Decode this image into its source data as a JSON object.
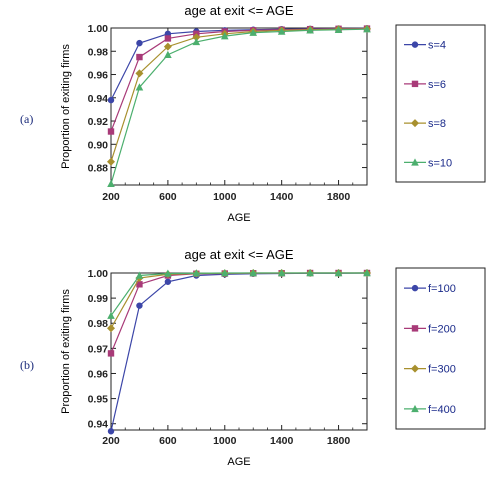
{
  "chart_data": [
    {
      "type": "line",
      "panel_label": "(a)",
      "title": "age at exit <= AGE",
      "xlabel": "AGE",
      "ylabel": "Proportion of exiting firms",
      "x": [
        200,
        400,
        600,
        800,
        1000,
        1200,
        1400,
        1600,
        1800,
        2000
      ],
      "xlim": [
        200,
        2000
      ],
      "ylim": [
        0.865,
        1.0
      ],
      "xticks": [
        "200",
        "600",
        "1000",
        "1400",
        "1800"
      ],
      "yticks": [
        "0.88",
        "0.90",
        "0.92",
        "0.94",
        "0.96",
        "0.98",
        "1.00"
      ],
      "grid": false,
      "legend_position": "right",
      "series": [
        {
          "name": "s=4",
          "color": "#3c46a8",
          "marker": "circle",
          "values": [
            0.938,
            0.987,
            0.995,
            0.997,
            0.998,
            0.9985,
            0.999,
            0.9993,
            0.9995,
            0.9997
          ]
        },
        {
          "name": "s=6",
          "color": "#a83a78",
          "marker": "square",
          "values": [
            0.911,
            0.975,
            0.991,
            0.995,
            0.997,
            0.998,
            0.9985,
            0.999,
            0.9993,
            0.9995
          ]
        },
        {
          "name": "s=8",
          "color": "#a8902e",
          "marker": "diamond",
          "values": [
            0.885,
            0.961,
            0.984,
            0.992,
            0.995,
            0.997,
            0.998,
            0.9985,
            0.999,
            0.9992
          ]
        },
        {
          "name": "s=10",
          "color": "#4caf6e",
          "marker": "triangle",
          "values": [
            0.866,
            0.949,
            0.977,
            0.988,
            0.993,
            0.996,
            0.997,
            0.998,
            0.9985,
            0.999
          ]
        }
      ]
    },
    {
      "type": "line",
      "panel_label": "(b)",
      "title": "age at exit <= AGE",
      "xlabel": "AGE",
      "ylabel": "Proportion of exiting firms",
      "x": [
        200,
        400,
        600,
        800,
        1000,
        1200,
        1400,
        1600,
        1800,
        2000
      ],
      "xlim": [
        200,
        2000
      ],
      "ylim": [
        0.9375,
        1.0
      ],
      "xticks": [
        "200",
        "600",
        "1000",
        "1400",
        "1800"
      ],
      "yticks": [
        "0.94",
        "0.95",
        "0.96",
        "0.97",
        "0.98",
        "0.99",
        "1.00"
      ],
      "grid": false,
      "legend_position": "right",
      "series": [
        {
          "name": "f=100",
          "color": "#3c46a8",
          "marker": "circle",
          "values": [
            0.937,
            0.987,
            0.9965,
            0.999,
            0.9995,
            0.9997,
            0.9998,
            0.9999,
            0.9999,
            1.0
          ]
        },
        {
          "name": "f=200",
          "color": "#a83a78",
          "marker": "square",
          "values": [
            0.968,
            0.9955,
            0.999,
            0.9997,
            0.9998,
            0.9999,
            0.9999,
            1.0,
            1.0,
            1.0
          ]
        },
        {
          "name": "f=300",
          "color": "#a8902e",
          "marker": "diamond",
          "values": [
            0.978,
            0.998,
            0.9995,
            0.9998,
            0.9999,
            1.0,
            1.0,
            1.0,
            1.0,
            1.0
          ]
        },
        {
          "name": "f=400",
          "color": "#4caf6e",
          "marker": "triangle",
          "values": [
            0.983,
            0.999,
            0.9998,
            0.9999,
            1.0,
            1.0,
            1.0,
            1.0,
            1.0,
            1.0
          ]
        }
      ]
    }
  ]
}
